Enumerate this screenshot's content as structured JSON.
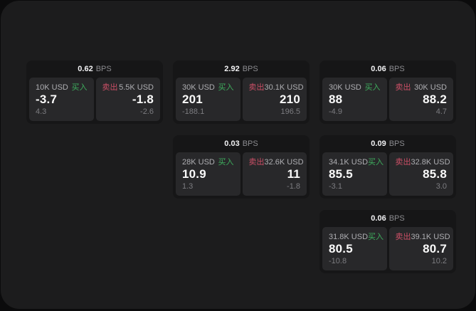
{
  "app": {
    "background": "#0b0b0c",
    "panel_background": "#1c1c1d",
    "card_background": "#161617",
    "tile_background": "#28282a",
    "accent_green": "#3ead5d",
    "accent_red": "#cc4f66"
  },
  "labels": {
    "bps_unit": "BPS",
    "buy": "买入",
    "sell": "卖出"
  },
  "cards": [
    {
      "col": 1,
      "row": 1,
      "bps": "0.62",
      "buy_amount": "10K USD",
      "buy_value": "-3.7",
      "buy_sub": "4.3",
      "sell_amount": "5.5K USD",
      "sell_value": "-1.8",
      "sell_sub": "-2.6"
    },
    {
      "col": 2,
      "row": 1,
      "bps": "2.92",
      "buy_amount": "30K USD",
      "buy_value": "201",
      "buy_sub": "-188.1",
      "sell_amount": "30.1K USD",
      "sell_value": "210",
      "sell_sub": "196.5"
    },
    {
      "col": 3,
      "row": 1,
      "bps": "0.06",
      "buy_amount": "30K USD",
      "buy_value": "88",
      "buy_sub": "-4.9",
      "sell_amount": "30K USD",
      "sell_value": "88.2",
      "sell_sub": "4.7"
    },
    {
      "col": 2,
      "row": 2,
      "bps": "0.03",
      "buy_amount": "28K USD",
      "buy_value": "10.9",
      "buy_sub": "1.3",
      "sell_amount": "32.6K USD",
      "sell_value": "11",
      "sell_sub": "-1.8"
    },
    {
      "col": 3,
      "row": 2,
      "bps": "0.09",
      "buy_amount": "34.1K USD",
      "buy_value": "85.5",
      "buy_sub": "-3.1",
      "sell_amount": "32.8K USD",
      "sell_value": "85.8",
      "sell_sub": "3.0"
    },
    {
      "col": 3,
      "row": 3,
      "bps": "0.06",
      "buy_amount": "31.8K USD",
      "buy_value": "80.5",
      "buy_sub": "-10.8",
      "sell_amount": "39.1K USD",
      "sell_value": "80.7",
      "sell_sub": "10.2"
    }
  ]
}
